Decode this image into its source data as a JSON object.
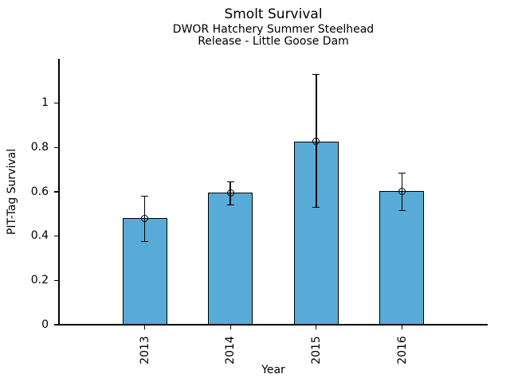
{
  "chart_data": {
    "type": "bar",
    "title": "Smolt Survival",
    "subtitle_lines": [
      "DWOR Hatchery Summer Steelhead",
      "Release - Little Goose Dam"
    ],
    "xlabel": "Year",
    "ylabel": "PIT-Tag Survival",
    "categories": [
      "2013",
      "2014",
      "2015",
      "2016"
    ],
    "values": [
      0.48,
      0.595,
      0.828,
      0.603
    ],
    "error_low": [
      0.375,
      0.54,
      0.53,
      0.515
    ],
    "error_high": [
      0.58,
      0.645,
      1.13,
      0.685
    ],
    "ytick_values": [
      0,
      0.2,
      0.4,
      0.6,
      0.8,
      1
    ],
    "ytick_labels": [
      "0",
      "0.2",
      "0.4",
      "0.6",
      "0.8",
      "1"
    ],
    "ylim": [
      0,
      1.2
    ],
    "xtick_rotation_deg": 90,
    "grid": false,
    "legend": "none",
    "bar_color": "#58ABD6",
    "bar_edge_color": "#000000",
    "error_color": "#000000",
    "marker": "open-circle"
  }
}
